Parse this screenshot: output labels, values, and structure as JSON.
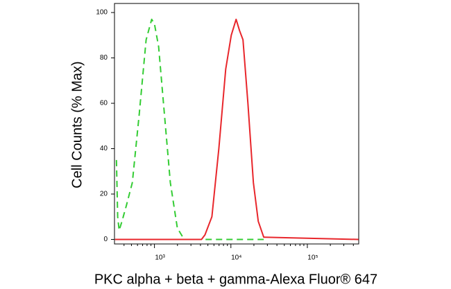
{
  "chart_data": {
    "type": "line",
    "x_label": "PKC alpha + beta + gamma-Alexa Fluor® 647",
    "y_label": "Cell Counts (% Max)",
    "xscale": "log",
    "xlim": [
      300,
      470000
    ],
    "ylim": [
      -2,
      104
    ],
    "xticks": [
      {
        "value": 1000,
        "label": "10³"
      },
      {
        "value": 10000,
        "label": "10⁴"
      },
      {
        "value": 100000,
        "label": "10⁵"
      }
    ],
    "yticks": [
      0,
      20,
      40,
      60,
      80,
      100
    ],
    "series": [
      {
        "color": "#33cc33",
        "linestyle": "dashed",
        "x": [
          318,
          330,
          345,
          376,
          430,
          513,
          631,
          778,
          920,
          1000,
          1133,
          1312,
          1615,
          1991,
          2450,
          4120,
          26900
        ],
        "values": [
          35,
          10,
          4,
          8,
          15,
          25,
          55,
          88,
          97,
          95,
          85,
          60,
          25,
          5,
          0,
          0,
          0
        ]
      },
      {
        "color": "#e8262b",
        "linestyle": "solid",
        "x": [
          305,
          4120,
          4580,
          5640,
          6950,
          8550,
          10100,
          11700,
          13000,
          14400,
          16700,
          19700,
          22800,
          26900,
          467000
        ],
        "values": [
          0,
          0,
          2,
          10,
          40,
          75,
          90,
          97,
          92,
          88,
          60,
          25,
          8,
          1,
          0
        ]
      }
    ]
  }
}
